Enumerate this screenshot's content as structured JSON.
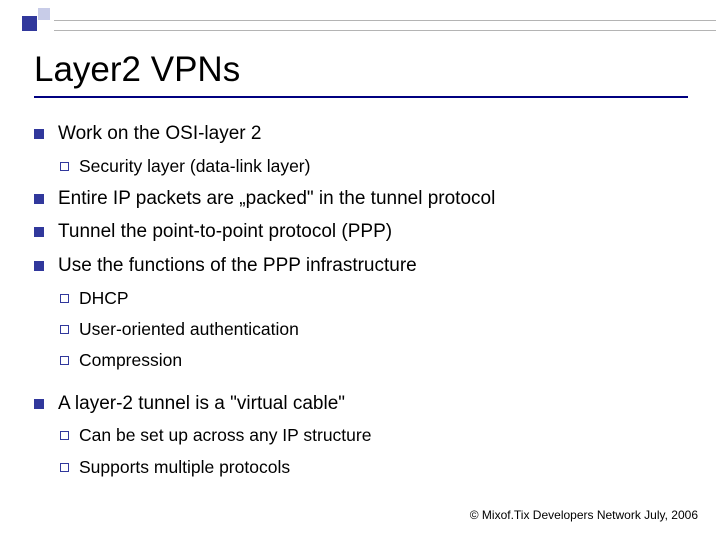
{
  "accent": {
    "dark": "#31389c",
    "light": "#c8cce8"
  },
  "title": "Layer2 VPNs",
  "bullets": {
    "b1": "Work on the OSI-layer 2",
    "b1a": "Security layer (data-link layer)",
    "b2": "Entire IP packets are „packed\" in the tunnel protocol",
    "b3": "Tunnel the point-to-point protocol (PPP)",
    "b4": "Use the functions of the PPP infrastructure",
    "b4a": "DHCP",
    "b4b": "User-oriented authentication",
    "b4c": "Compression",
    "b5": "A layer-2 tunnel is a \"virtual cable\"",
    "b5a": "Can be set up across any IP structure",
    "b5b": "Supports multiple protocols"
  },
  "footer": "© Mixof.Tix Developers Network July, 2006"
}
